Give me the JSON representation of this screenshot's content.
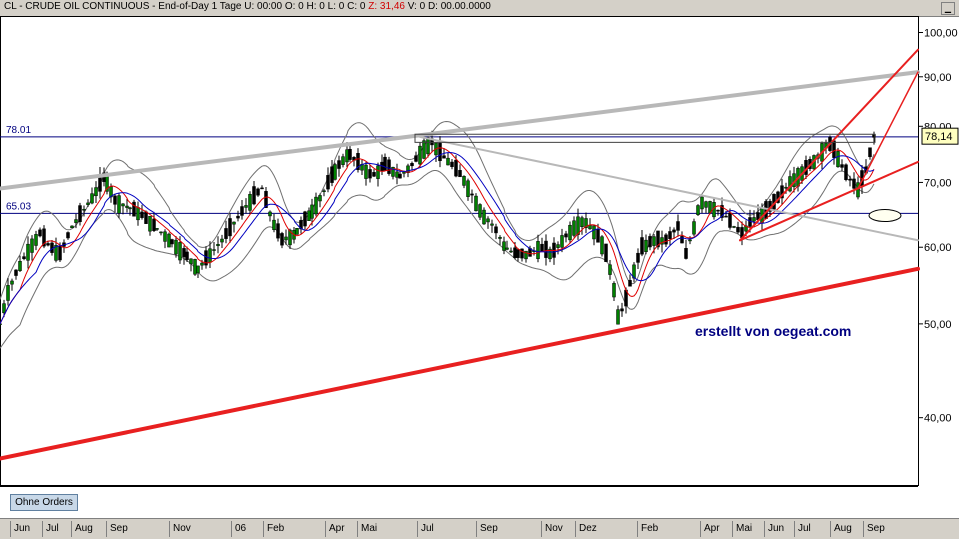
{
  "window": {
    "title": {
      "symbol": "CL - CRUDE OIL CONTINUOUS - End-of-Day 1 Tage",
      "u": "U: 00:00",
      "o": "O: 0",
      "h": "H: 0",
      "l": "L: 0",
      "c": "C: 0",
      "z": "Z: 31,46",
      "v": "V: 0",
      "d": "D: 00.00.0000"
    },
    "button_label": "Ohne Orders",
    "watermark": "erstellt von oegeat.com"
  },
  "chart_data": {
    "type": "candlestick",
    "y_axis": {
      "scale": "log",
      "ticks": [
        "100,00",
        "90,00",
        "80,00",
        "70,00",
        "60,00",
        "50,00",
        "40,00"
      ],
      "tick_values": [
        100,
        90,
        80,
        70,
        60,
        50,
        40
      ],
      "ylim": [
        34,
        104
      ]
    },
    "last_price_label": "78,14",
    "last_price": 78.14,
    "horizontal_lines": [
      {
        "label": "78.01",
        "value": 78.01,
        "color": "#000080"
      },
      {
        "label": "65.03",
        "value": 65.03,
        "color": "#000080"
      }
    ],
    "x_axis_labels": [
      "Jun",
      "Jul",
      "Aug",
      "Sep",
      "Nov",
      "06",
      "Feb",
      "Apr",
      "Mai",
      "Jul",
      "Sep",
      "Nov",
      "Dez",
      "Feb",
      "Apr",
      "Mai",
      "Jun",
      "Jul",
      "Aug",
      "Sep"
    ],
    "price_path": [
      [
        0,
        50
      ],
      [
        8,
        54
      ],
      [
        18,
        57
      ],
      [
        30,
        60
      ],
      [
        40,
        62
      ],
      [
        50,
        60
      ],
      [
        60,
        59
      ],
      [
        72,
        63
      ],
      [
        90,
        67
      ],
      [
        105,
        71
      ],
      [
        115,
        67
      ],
      [
        128,
        66
      ],
      [
        140,
        65
      ],
      [
        155,
        63
      ],
      [
        170,
        61
      ],
      [
        185,
        59
      ],
      [
        198,
        57
      ],
      [
        210,
        59
      ],
      [
        222,
        61
      ],
      [
        236,
        64
      ],
      [
        250,
        67
      ],
      [
        262,
        69
      ],
      [
        272,
        64
      ],
      [
        282,
        61
      ],
      [
        295,
        62
      ],
      [
        310,
        65
      ],
      [
        322,
        68
      ],
      [
        335,
        72
      ],
      [
        348,
        75
      ],
      [
        360,
        73
      ],
      [
        372,
        71
      ],
      [
        385,
        73
      ],
      [
        400,
        71
      ],
      [
        412,
        73
      ],
      [
        424,
        76
      ],
      [
        432,
        77
      ],
      [
        440,
        75
      ],
      [
        452,
        73
      ],
      [
        462,
        71
      ],
      [
        472,
        68
      ],
      [
        482,
        65
      ],
      [
        494,
        63
      ],
      [
        505,
        60
      ],
      [
        516,
        59
      ],
      [
        528,
        59
      ],
      [
        540,
        60
      ],
      [
        552,
        59
      ],
      [
        562,
        61
      ],
      [
        574,
        63
      ],
      [
        584,
        64
      ],
      [
        596,
        62
      ],
      [
        604,
        60
      ],
      [
        612,
        56
      ],
      [
        618,
        51
      ],
      [
        624,
        52
      ],
      [
        632,
        56
      ],
      [
        642,
        60
      ],
      [
        654,
        61
      ],
      [
        666,
        61
      ],
      [
        678,
        63
      ],
      [
        686,
        59
      ],
      [
        694,
        63
      ],
      [
        700,
        67
      ],
      [
        712,
        66
      ],
      [
        724,
        65
      ],
      [
        734,
        63
      ],
      [
        742,
        62
      ],
      [
        752,
        64
      ],
      [
        764,
        65
      ],
      [
        776,
        67
      ],
      [
        790,
        70
      ],
      [
        804,
        72
      ],
      [
        816,
        74
      ],
      [
        828,
        77
      ],
      [
        836,
        75
      ],
      [
        844,
        72
      ],
      [
        852,
        70
      ],
      [
        858,
        69
      ],
      [
        866,
        72
      ],
      [
        874,
        78.14
      ]
    ],
    "x_max_index": 918,
    "trendlines": [
      {
        "color": "#b8b8b8",
        "width": 4,
        "from": [
          0,
          69
        ],
        "to": [
          918,
          91
        ]
      },
      {
        "color": "#b8b8b8",
        "width": 2,
        "from": [
          420,
          78
        ],
        "to": [
          918,
          61
        ]
      },
      {
        "color": "#e82020",
        "width": 4,
        "from": [
          0,
          36.3
        ],
        "to": [
          918,
          57
        ]
      },
      {
        "color": "#e82020",
        "width": 2,
        "from": [
          740,
          61
        ],
        "to": [
          918,
          73.5
        ]
      },
      {
        "color": "#e82020",
        "width": 2,
        "from": [
          740,
          61
        ],
        "to": [
          918,
          96
        ]
      },
      {
        "color": "#e82020",
        "width": 1.5,
        "from": [
          858,
          69
        ],
        "to": [
          918,
          91
        ]
      }
    ]
  }
}
